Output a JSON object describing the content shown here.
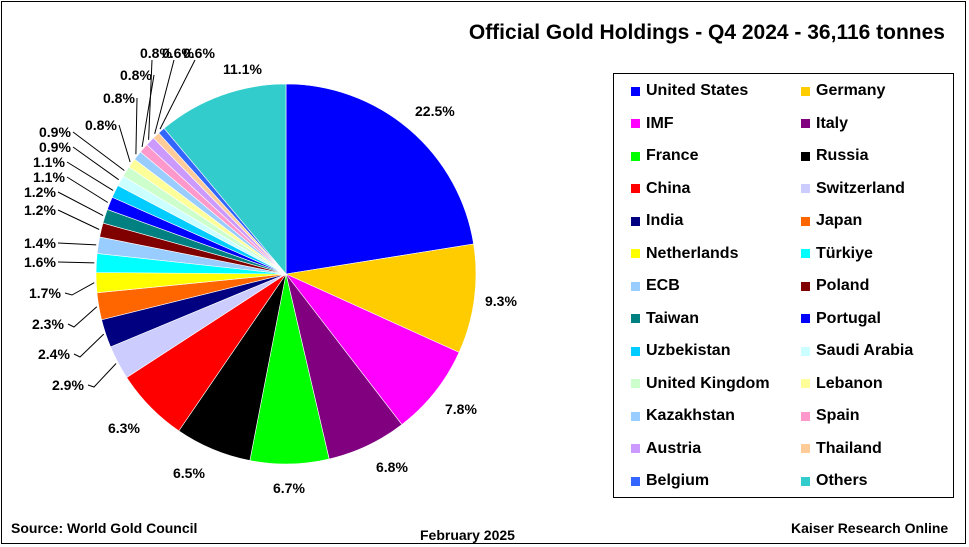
{
  "chart_data": {
    "type": "pie",
    "title": "Official Gold Holdings - Q4 2024 - 36,116 tonnes",
    "legend_position": "right",
    "slices": [
      {
        "name": "United States",
        "value": 22.5,
        "label": "22.5%",
        "color": "#0000ff"
      },
      {
        "name": "Germany",
        "value": 9.3,
        "label": "9.3%",
        "color": "#ffcc00"
      },
      {
        "name": "IMF",
        "value": 7.8,
        "label": "7.8%",
        "color": "#ff00ff"
      },
      {
        "name": "Italy",
        "value": 6.8,
        "label": "6.8%",
        "color": "#800080"
      },
      {
        "name": "France",
        "value": 6.7,
        "label": "6.7%",
        "color": "#00ff00"
      },
      {
        "name": "Russia",
        "value": 6.5,
        "label": "6.5%",
        "color": "#000000"
      },
      {
        "name": "China",
        "value": 6.3,
        "label": "6.3%",
        "color": "#ff0000"
      },
      {
        "name": "Switzerland",
        "value": 2.9,
        "label": "2.9%",
        "color": "#ccccff"
      },
      {
        "name": "India",
        "value": 2.4,
        "label": "2.4%",
        "color": "#000080"
      },
      {
        "name": "Japan",
        "value": 2.3,
        "label": "2.3%",
        "color": "#ff6600"
      },
      {
        "name": "Netherlands",
        "value": 1.7,
        "label": "1.7%",
        "color": "#ffff00"
      },
      {
        "name": "Türkiye",
        "value": 1.6,
        "label": "1.6%",
        "color": "#00ffff"
      },
      {
        "name": "ECB",
        "value": 1.4,
        "label": "1.4%",
        "color": "#99ccff"
      },
      {
        "name": "Poland",
        "value": 1.2,
        "label": "1.2%",
        "color": "#800000"
      },
      {
        "name": "Taiwan",
        "value": 1.2,
        "label": "1.2%",
        "color": "#008080"
      },
      {
        "name": "Portugal",
        "value": 1.1,
        "label": "1.1%",
        "color": "#0000ff"
      },
      {
        "name": "Uzbekistan",
        "value": 1.1,
        "label": "1.1%",
        "color": "#00ccff"
      },
      {
        "name": "Saudi Arabia",
        "value": 0.9,
        "label": "0.9%",
        "color": "#ccffff"
      },
      {
        "name": "United Kingdom",
        "value": 0.9,
        "label": "0.9%",
        "color": "#ccffcc"
      },
      {
        "name": "Lebanon",
        "value": 0.8,
        "label": "0.8%",
        "color": "#ffff99"
      },
      {
        "name": "Kazakhstan",
        "value": 0.8,
        "label": "0.8%",
        "color": "#99ccff"
      },
      {
        "name": "Spain",
        "value": 0.8,
        "label": "0.8%",
        "color": "#ff99cc"
      },
      {
        "name": "Austria",
        "value": 0.8,
        "label": "0.8%",
        "color": "#cc99ff"
      },
      {
        "name": "Thailand",
        "value": 0.6,
        "label": "0.6%",
        "color": "#ffcc99"
      },
      {
        "name": "Belgium",
        "value": 0.6,
        "label": "0.6%",
        "color": "#3366ff"
      },
      {
        "name": "Others",
        "value": 11.1,
        "label": "11.1%",
        "color": "#33cccc"
      }
    ]
  },
  "footer": {
    "source": "Source: World Gold Council",
    "date": "February 2025",
    "credit": "Kaiser Research Online"
  }
}
